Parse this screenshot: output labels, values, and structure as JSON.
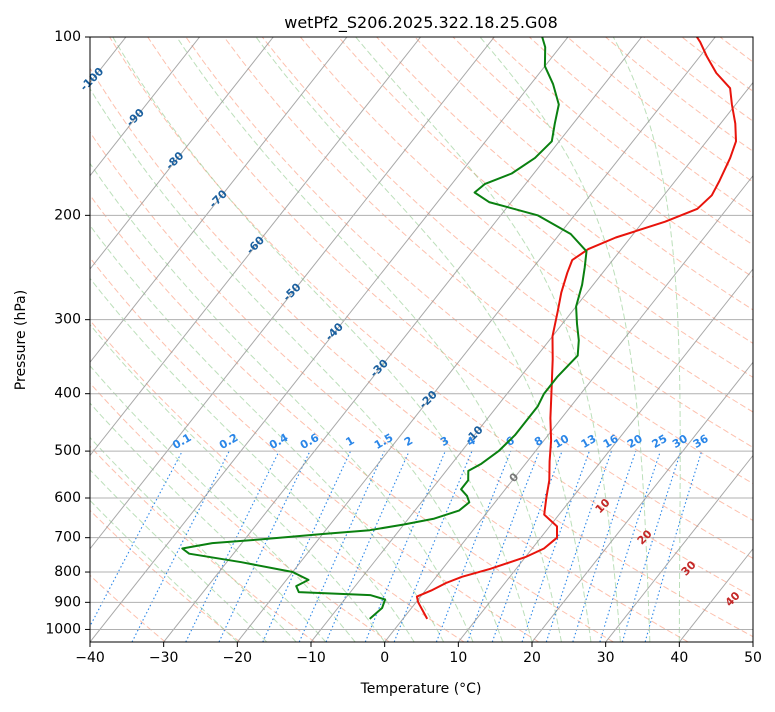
{
  "chart_data": {
    "type": "line",
    "chart_kind": "skew-T log-P diagram",
    "title": "wetPf2_S206.2025.322.18.25.G08",
    "xlabel": "Temperature (°C)",
    "ylabel": "Pressure (hPa)",
    "xlim": [
      -40,
      50
    ],
    "ylim": [
      1050,
      100
    ],
    "y_scale": "log",
    "x_ticks": [
      "−40",
      "−30",
      "−20",
      "−10",
      "0",
      "10",
      "20",
      "30",
      "40",
      "50"
    ],
    "x_tick_values": [
      -40,
      -30,
      -20,
      -10,
      0,
      10,
      20,
      30,
      40,
      50
    ],
    "y_ticks": [
      "100",
      "200",
      "300",
      "400",
      "500",
      "600",
      "700",
      "800",
      "900",
      "1000"
    ],
    "y_tick_values": [
      100,
      200,
      300,
      400,
      500,
      600,
      700,
      800,
      900,
      1000
    ],
    "grid": "horizontal at pressure ticks",
    "colors": {
      "temperature": "#e8140c",
      "dewpoint": "#0a8010",
      "isotherm": "#9a9a9a",
      "dry_adiabat": "#fc8d6a",
      "moist_adiabat": "#8fca8c",
      "mixing_ratio": "#2a86e8",
      "isotherm_label": "#1a5f9e",
      "moist_adiabat_label": "#c42727",
      "zero_label": "#777777"
    },
    "series": [
      {
        "role": "temperature",
        "points": [
          [
            3.3,
            960
          ],
          [
            0.3,
            900
          ],
          [
            -0.5,
            880
          ],
          [
            0.8,
            860
          ],
          [
            2.0,
            835
          ],
          [
            3.5,
            815
          ],
          [
            6.5,
            790
          ],
          [
            10.0,
            755
          ],
          [
            11.6,
            730
          ],
          [
            12.2,
            700
          ],
          [
            11.0,
            670
          ],
          [
            8.0,
            640
          ],
          [
            6.5,
            600
          ],
          [
            5.0,
            560
          ],
          [
            3.0,
            520
          ],
          [
            1.0,
            480
          ],
          [
            -1.5,
            440
          ],
          [
            -4.0,
            400
          ],
          [
            -7.5,
            350
          ],
          [
            -10.0,
            320
          ],
          [
            -12.0,
            290
          ],
          [
            -13.5,
            270
          ],
          [
            -14.8,
            250
          ],
          [
            -15.5,
            238
          ],
          [
            -14.5,
            228
          ],
          [
            -12.0,
            218
          ],
          [
            -7.0,
            205
          ],
          [
            -4.0,
            195
          ],
          [
            -3.5,
            185
          ],
          [
            -4.0,
            175
          ],
          [
            -5.0,
            160
          ],
          [
            -6.0,
            150
          ],
          [
            -8.0,
            140
          ],
          [
            -10.5,
            130
          ],
          [
            -12.5,
            122
          ],
          [
            -16.0,
            115
          ],
          [
            -19.0,
            108
          ],
          [
            -21.5,
            102
          ],
          [
            -22.5,
            100
          ]
        ]
      },
      {
        "role": "dewpoint",
        "points": [
          [
            -4.5,
            960
          ],
          [
            -4.0,
            920
          ],
          [
            -4.5,
            890
          ],
          [
            -7.0,
            875
          ],
          [
            -12.0,
            870
          ],
          [
            -17.0,
            865
          ],
          [
            -18.0,
            845
          ],
          [
            -17.0,
            825
          ],
          [
            -20.0,
            800
          ],
          [
            -28.0,
            770
          ],
          [
            -36.0,
            745
          ],
          [
            -37.5,
            730
          ],
          [
            -34.0,
            715
          ],
          [
            -28.0,
            705
          ],
          [
            -20.0,
            690
          ],
          [
            -14.0,
            680
          ],
          [
            -10.0,
            665
          ],
          [
            -6.5,
            650
          ],
          [
            -4.0,
            630
          ],
          [
            -3.5,
            610
          ],
          [
            -4.5,
            595
          ],
          [
            -6.0,
            580
          ],
          [
            -6.0,
            560
          ],
          [
            -7.0,
            540
          ],
          [
            -6.0,
            525
          ],
          [
            -5.0,
            500
          ],
          [
            -4.5,
            470
          ],
          [
            -4.5,
            440
          ],
          [
            -4.5,
            420
          ],
          [
            -5.0,
            400
          ],
          [
            -5.0,
            375
          ],
          [
            -4.5,
            345
          ],
          [
            -6.0,
            325
          ],
          [
            -8.0,
            305
          ],
          [
            -10.0,
            285
          ],
          [
            -11.5,
            262
          ],
          [
            -13.0,
            245
          ],
          [
            -14.5,
            230
          ],
          [
            -18.5,
            215
          ],
          [
            -25.0,
            200
          ],
          [
            -33.0,
            190
          ],
          [
            -36.0,
            183
          ],
          [
            -35.5,
            177
          ],
          [
            -33.0,
            170
          ],
          [
            -31.5,
            160
          ],
          [
            -31.0,
            150
          ],
          [
            -32.5,
            140
          ],
          [
            -34.0,
            130
          ],
          [
            -37.0,
            120
          ],
          [
            -40.0,
            112
          ],
          [
            -42.0,
            104
          ],
          [
            -43.5,
            100
          ]
        ]
      }
    ],
    "isotherm_labels": [
      "-100",
      "-90",
      "-80",
      "-70",
      "-60",
      "-50",
      "-40",
      "-30",
      "-20",
      "-10",
      "0"
    ],
    "isotherm_label_values": [
      -100,
      -90,
      -80,
      -70,
      -60,
      -50,
      -40,
      -30,
      -20,
      -10,
      0
    ],
    "mixing_ratio_labels": [
      "0.1",
      "0.2",
      "0.4",
      "0.6",
      "1",
      "1.5",
      "2",
      "3",
      "4",
      "6",
      "8",
      "10",
      "13",
      "16",
      "20",
      "25",
      "30",
      "36"
    ],
    "mixing_ratio_label_values": [
      0.1,
      0.2,
      0.4,
      0.6,
      1,
      1.5,
      2,
      3,
      4,
      6,
      8,
      10,
      13,
      16,
      20,
      25,
      30,
      36
    ],
    "moist_adiabat_labels": [
      "10",
      "20",
      "30",
      "40"
    ],
    "moist_adiabat_label_values": [
      10,
      20,
      30,
      40
    ]
  }
}
